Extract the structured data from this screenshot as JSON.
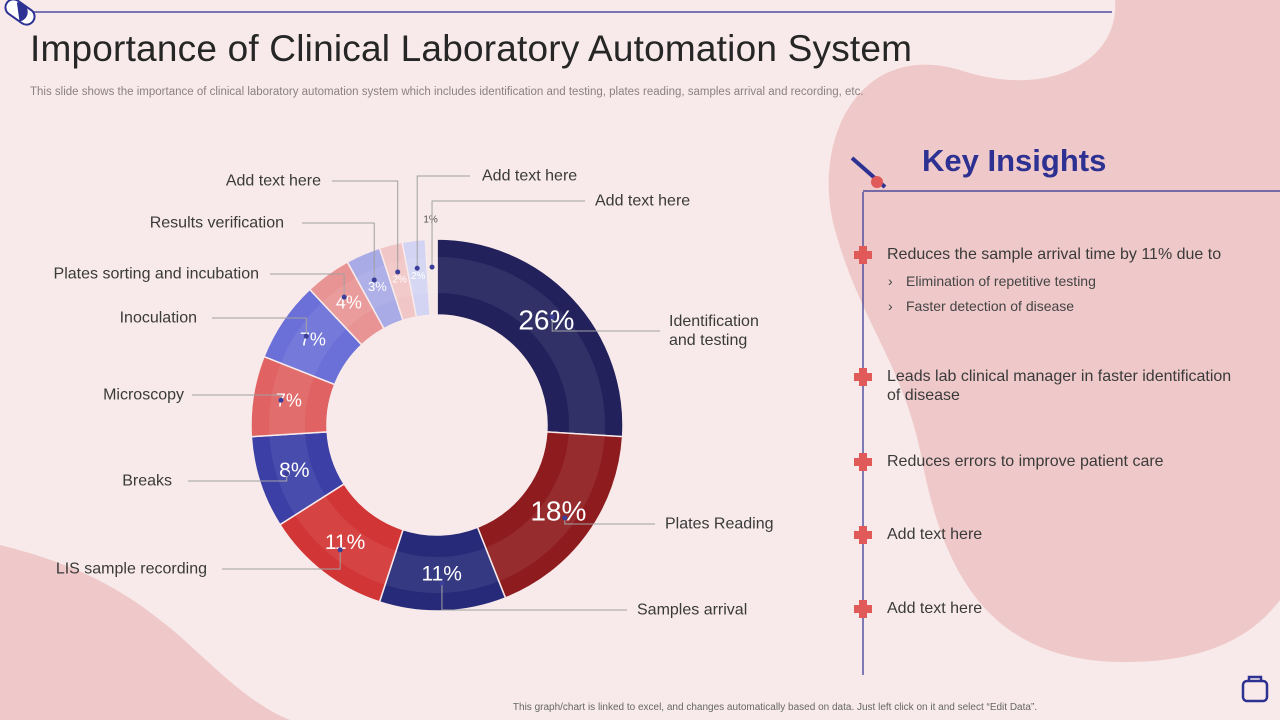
{
  "header": {
    "title": "Importance of Clinical Laboratory Automation System",
    "subtitle": "This slide shows the importance of clinical laboratory automation system which includes identification and testing, plates reading, samples arrival and recording, etc."
  },
  "chart_data": {
    "type": "donut",
    "categories": [
      "Identification and testing",
      "Plates Reading",
      "Samples arrival",
      "LIS sample recording",
      "Breaks",
      "Microscopy",
      "Inoculation",
      "Plates sorting and incubation",
      "Results verification",
      "Add text here",
      "Add text here",
      "Add text here"
    ],
    "values": [
      26,
      18,
      11,
      11,
      8,
      7,
      7,
      4,
      3,
      2,
      2,
      1
    ],
    "value_labels": [
      "26%",
      "18%",
      "11%",
      "11%",
      "8%",
      "7%",
      "7%",
      "4%",
      "3%",
      "2%",
      "2%",
      "1%"
    ],
    "colors": [
      "#22215c",
      "#8e1c1f",
      "#262a78",
      "#d23535",
      "#3b3fa6",
      "#e06262",
      "#6b70d8",
      "#e99494",
      "#a9abe6",
      "#f1c6c6",
      "#d3d4f3",
      "#f6e8e8"
    ]
  },
  "insights": {
    "title": "Key Insights",
    "items": [
      {
        "text": "Reduces the sample arrival time by 11% due to",
        "sub": [
          "Elimination of repetitive testing",
          "Faster detection of disease"
        ]
      },
      {
        "text": "Leads lab clinical manager in faster identification of disease"
      },
      {
        "text": "Reduces errors to improve patient care"
      },
      {
        "text": "Add text here"
      },
      {
        "text": "Add text here"
      }
    ]
  },
  "footer": "This graph/chart is linked to excel, and changes automatically based on data. Just left click on it and select “Edit Data”."
}
